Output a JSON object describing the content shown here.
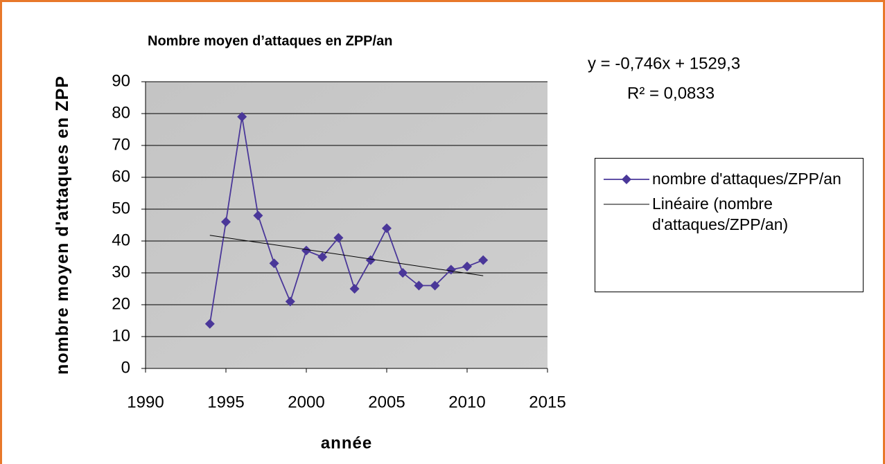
{
  "chart_data": {
    "type": "line",
    "title": "Nombre moyen d’attaques en ZPP/an",
    "xlabel": "année",
    "ylabel": "nombre moyen d'attaques en ZPP",
    "xlim": [
      1990,
      2015
    ],
    "xticks": [
      1990,
      1995,
      2000,
      2005,
      2010,
      2015
    ],
    "ylim": [
      0,
      90
    ],
    "yticks": [
      0,
      10,
      20,
      30,
      40,
      50,
      60,
      70,
      80,
      90
    ],
    "grid": true,
    "legend": "right",
    "annotations": [
      "y = -0,746x + 1529,3",
      "R² = 0,0833"
    ],
    "series": [
      {
        "name": "nombre d'attaques/ZPP/an",
        "color": "#4a3799",
        "marker": "diamond",
        "x": [
          1994,
          1995,
          1996,
          1997,
          1998,
          1999,
          2000,
          2001,
          2002,
          2003,
          2004,
          2005,
          2006,
          2007,
          2008,
          2009,
          2010,
          2011
        ],
        "values": [
          14,
          46,
          79,
          48,
          33,
          21,
          37,
          35,
          41,
          25,
          34,
          44,
          30,
          26,
          26,
          31,
          32,
          34
        ]
      },
      {
        "name": "Linéaire (nombre d'attaques/ZPP/an)",
        "color": "#000000",
        "x": [
          1994,
          2011
        ],
        "values": [
          41.8,
          29.1
        ]
      }
    ]
  }
}
